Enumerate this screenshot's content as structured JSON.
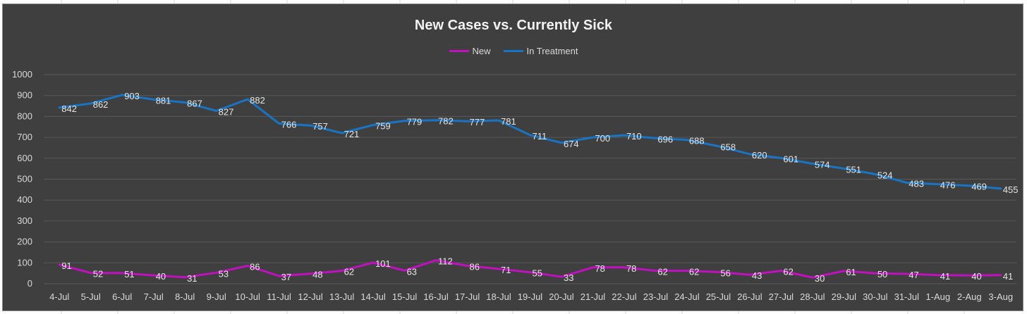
{
  "chart_data": {
    "type": "line",
    "title": "New Cases vs. Currently Sick",
    "xlabel": "",
    "ylabel": "",
    "ylim": [
      0,
      1000
    ],
    "yticks": [
      0,
      100,
      200,
      300,
      400,
      500,
      600,
      700,
      800,
      900,
      1000
    ],
    "grid": true,
    "legend_position": "top-center",
    "categories": [
      "4-Jul",
      "5-Jul",
      "6-Jul",
      "7-Jul",
      "8-Jul",
      "9-Jul",
      "10-Jul",
      "11-Jul",
      "12-Jul",
      "13-Jul",
      "14-Jul",
      "15-Jul",
      "16-Jul",
      "17-Jul",
      "18-Jul",
      "19-Jul",
      "20-Jul",
      "21-Jul",
      "22-Jul",
      "23-Jul",
      "24-Jul",
      "25-Jul",
      "26-Jul",
      "27-Jul",
      "28-Jul",
      "29-Jul",
      "30-Jul",
      "31-Jul",
      "1-Aug",
      "2-Aug",
      "3-Aug"
    ],
    "series": [
      {
        "name": "New",
        "color": "#c010c0",
        "values": [
          91,
          52,
          51,
          40,
          31,
          53,
          86,
          37,
          48,
          62,
          101,
          63,
          112,
          86,
          71,
          55,
          33,
          78,
          78,
          62,
          62,
          56,
          43,
          62,
          30,
          61,
          50,
          47,
          41,
          40,
          41
        ]
      },
      {
        "name": "In Treatment",
        "color": "#1a74c4",
        "values": [
          842,
          862,
          903,
          881,
          867,
          827,
          882,
          766,
          757,
          721,
          759,
          779,
          782,
          777,
          781,
          711,
          674,
          700,
          710,
          696,
          688,
          658,
          620,
          601,
          574,
          551,
          524,
          483,
          476,
          469,
          455
        ]
      }
    ]
  },
  "colors": {
    "background": "#3f3f3f",
    "gridline": "#595959",
    "text": "#d9d9d9"
  }
}
